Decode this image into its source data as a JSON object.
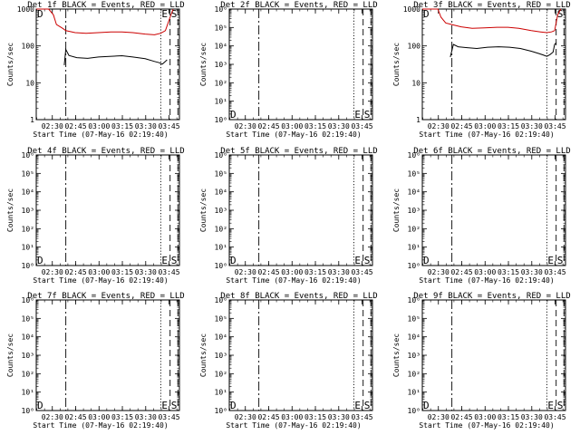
{
  "chart_data": {
    "type": "line",
    "x_tick_labels": [
      "02:30",
      "02:45",
      "03:00",
      "03:15",
      "03:30",
      "03:45"
    ],
    "x_label": "Start Time (07-May-16 02:19:40)",
    "y_label": "Counts/sec",
    "y_scale": "log",
    "x_range_minutes_after_start": [
      0,
      92
    ],
    "colors": {
      "events": "#000000",
      "lld": "#cc0000"
    },
    "panels": [
      {
        "title": "Det 1f BLACK = Events, RED = LLD",
        "ylim": [
          1,
          1000
        ],
        "y_tick_labels": [
          "1",
          "10",
          "100",
          "1000"
        ],
        "markers": [
          {
            "label": "D",
            "x_min": 0,
            "style": "none"
          },
          {
            "label": "",
            "x_min": 19,
            "style": "dash-dot"
          },
          {
            "label": "E",
            "x_min": 80,
            "style": "dotted"
          },
          {
            "label": "S",
            "x_min": 86,
            "style": "dash"
          },
          {
            "label": "",
            "x_min": 91,
            "style": "dash"
          }
        ],
        "series": [
          {
            "key": "lld",
            "points": [
              [
                0,
                1000
              ],
              [
                8,
                1000
              ],
              [
                11,
                700
              ],
              [
                13,
                380
              ],
              [
                17,
                300
              ],
              [
                19,
                260
              ],
              [
                25,
                230
              ],
              [
                32,
                220
              ],
              [
                40,
                230
              ],
              [
                48,
                240
              ],
              [
                55,
                240
              ],
              [
                62,
                230
              ],
              [
                70,
                210
              ],
              [
                76,
                200
              ],
              [
                80,
                220
              ],
              [
                83,
                260
              ],
              [
                86,
                600
              ],
              [
                88,
                1000
              ]
            ]
          },
          {
            "key": "events",
            "points": [
              [
                18,
                30
              ],
              [
                19,
                80
              ],
              [
                21,
                55
              ],
              [
                26,
                48
              ],
              [
                33,
                46
              ],
              [
                40,
                50
              ],
              [
                47,
                52
              ],
              [
                55,
                54
              ],
              [
                62,
                50
              ],
              [
                70,
                45
              ],
              [
                76,
                38
              ],
              [
                79,
                35
              ],
              [
                81,
                32
              ],
              [
                83,
                38
              ],
              [
                84,
                42
              ]
            ]
          }
        ]
      },
      {
        "title": "Det 2f BLACK = Events, RED = LLD",
        "ylim": [
          1,
          1000000
        ],
        "y_tick_labels": [
          "10⁰",
          "10¹",
          "10²",
          "10³",
          "10⁴",
          "10⁵",
          "10⁶"
        ],
        "markers": [
          {
            "label": "D",
            "x_min": 0,
            "style": "none"
          },
          {
            "label": "",
            "x_min": 19,
            "style": "dash-dot"
          },
          {
            "label": "E",
            "x_min": 80,
            "style": "dotted"
          },
          {
            "label": "S",
            "x_min": 86,
            "style": "dash"
          },
          {
            "label": "",
            "x_min": 91,
            "style": "dash"
          }
        ],
        "series": []
      },
      {
        "title": "Det 3f BLACK = Events, RED = LLD",
        "ylim": [
          1,
          1000
        ],
        "y_tick_labels": [
          "1",
          "10",
          "100",
          "1000"
        ],
        "markers": [
          {
            "label": "D",
            "x_min": 0,
            "style": "none"
          },
          {
            "label": "",
            "x_min": 19,
            "style": "dash-dot"
          },
          {
            "label": "",
            "x_min": 80,
            "style": "dotted"
          },
          {
            "label": "S",
            "x_min": 86,
            "style": "dash"
          },
          {
            "label": "",
            "x_min": 91,
            "style": "dash"
          }
        ],
        "series": [
          {
            "key": "lld",
            "points": [
              [
                0,
                1000
              ],
              [
                10,
                1000
              ],
              [
                12,
                600
              ],
              [
                15,
                420
              ],
              [
                19,
                380
              ],
              [
                25,
                330
              ],
              [
                32,
                300
              ],
              [
                40,
                310
              ],
              [
                48,
                320
              ],
              [
                55,
                320
              ],
              [
                62,
                300
              ],
              [
                70,
                260
              ],
              [
                76,
                240
              ],
              [
                80,
                230
              ],
              [
                83,
                240
              ],
              [
                85,
                260
              ],
              [
                87,
                700
              ],
              [
                89,
                1000
              ]
            ]
          },
          {
            "key": "events",
            "points": [
              [
                18,
                50
              ],
              [
                20,
                110
              ],
              [
                23,
                95
              ],
              [
                28,
                90
              ],
              [
                35,
                85
              ],
              [
                42,
                92
              ],
              [
                49,
                95
              ],
              [
                56,
                92
              ],
              [
                63,
                85
              ],
              [
                70,
                72
              ],
              [
                75,
                62
              ],
              [
                78,
                56
              ],
              [
                80,
                52
              ],
              [
                82,
                58
              ],
              [
                84,
                68
              ],
              [
                85,
                110
              ],
              [
                86,
                120
              ]
            ]
          }
        ]
      },
      {
        "title": "Det 4f BLACK = Events, RED = LLD",
        "ylim": [
          1,
          1000000
        ],
        "y_tick_labels": [
          "10⁰",
          "10¹",
          "10²",
          "10³",
          "10⁴",
          "10⁵",
          "10⁶"
        ],
        "markers": [
          {
            "label": "D",
            "x_min": 0,
            "style": "none"
          },
          {
            "label": "",
            "x_min": 19,
            "style": "dash-dot"
          },
          {
            "label": "E",
            "x_min": 80,
            "style": "dotted"
          },
          {
            "label": "S",
            "x_min": 86,
            "style": "dash"
          },
          {
            "label": "",
            "x_min": 91,
            "style": "dash"
          }
        ],
        "series": []
      },
      {
        "title": "Det 5f BLACK = Events, RED = LLD",
        "ylim": [
          1,
          1000000
        ],
        "y_tick_labels": [
          "10⁰",
          "10¹",
          "10²",
          "10³",
          "10⁴",
          "10⁵",
          "10⁶"
        ],
        "markers": [
          {
            "label": "D",
            "x_min": 0,
            "style": "none"
          },
          {
            "label": "",
            "x_min": 19,
            "style": "dash-dot"
          },
          {
            "label": "E",
            "x_min": 80,
            "style": "dotted"
          },
          {
            "label": "S",
            "x_min": 86,
            "style": "dash"
          },
          {
            "label": "",
            "x_min": 91,
            "style": "dash"
          }
        ],
        "series": []
      },
      {
        "title": "Det 6f BLACK = Events, RED = LLD",
        "ylim": [
          1,
          1000000
        ],
        "y_tick_labels": [
          "10⁰",
          "10¹",
          "10²",
          "10³",
          "10⁴",
          "10⁵",
          "10⁶"
        ],
        "markers": [
          {
            "label": "D",
            "x_min": 0,
            "style": "none"
          },
          {
            "label": "",
            "x_min": 19,
            "style": "dash-dot"
          },
          {
            "label": "E",
            "x_min": 80,
            "style": "dotted"
          },
          {
            "label": "S",
            "x_min": 86,
            "style": "dash"
          },
          {
            "label": "",
            "x_min": 91,
            "style": "dash"
          }
        ],
        "series": []
      },
      {
        "title": "Det 7f BLACK = Events, RED = LLD",
        "ylim": [
          1,
          1000000
        ],
        "y_tick_labels": [
          "10⁰",
          "10¹",
          "10²",
          "10³",
          "10⁴",
          "10⁵",
          "10⁶"
        ],
        "markers": [
          {
            "label": "D",
            "x_min": 0,
            "style": "none"
          },
          {
            "label": "",
            "x_min": 19,
            "style": "dash-dot"
          },
          {
            "label": "E",
            "x_min": 80,
            "style": "dotted"
          },
          {
            "label": "S",
            "x_min": 86,
            "style": "dash"
          },
          {
            "label": "",
            "x_min": 91,
            "style": "dash"
          }
        ],
        "series": []
      },
      {
        "title": "Det 8f BLACK = Events, RED = LLD",
        "ylim": [
          1,
          1000000
        ],
        "y_tick_labels": [
          "10⁰",
          "10¹",
          "10²",
          "10³",
          "10⁴",
          "10⁵",
          "10⁶"
        ],
        "markers": [
          {
            "label": "D",
            "x_min": 0,
            "style": "none"
          },
          {
            "label": "",
            "x_min": 19,
            "style": "dash-dot"
          },
          {
            "label": "E",
            "x_min": 80,
            "style": "dotted"
          },
          {
            "label": "S",
            "x_min": 86,
            "style": "dash"
          },
          {
            "label": "",
            "x_min": 91,
            "style": "dash"
          }
        ],
        "series": []
      },
      {
        "title": "Det 9f BLACK = Events, RED = LLD",
        "ylim": [
          1,
          1000000
        ],
        "y_tick_labels": [
          "10⁰",
          "10¹",
          "10²",
          "10³",
          "10⁴",
          "10⁵",
          "10⁶"
        ],
        "markers": [
          {
            "label": "D",
            "x_min": 0,
            "style": "none"
          },
          {
            "label": "",
            "x_min": 19,
            "style": "dash-dot"
          },
          {
            "label": "E",
            "x_min": 80,
            "style": "dotted"
          },
          {
            "label": "S",
            "x_min": 86,
            "style": "dash"
          },
          {
            "label": "",
            "x_min": 91,
            "style": "dash"
          }
        ],
        "series": []
      }
    ]
  }
}
